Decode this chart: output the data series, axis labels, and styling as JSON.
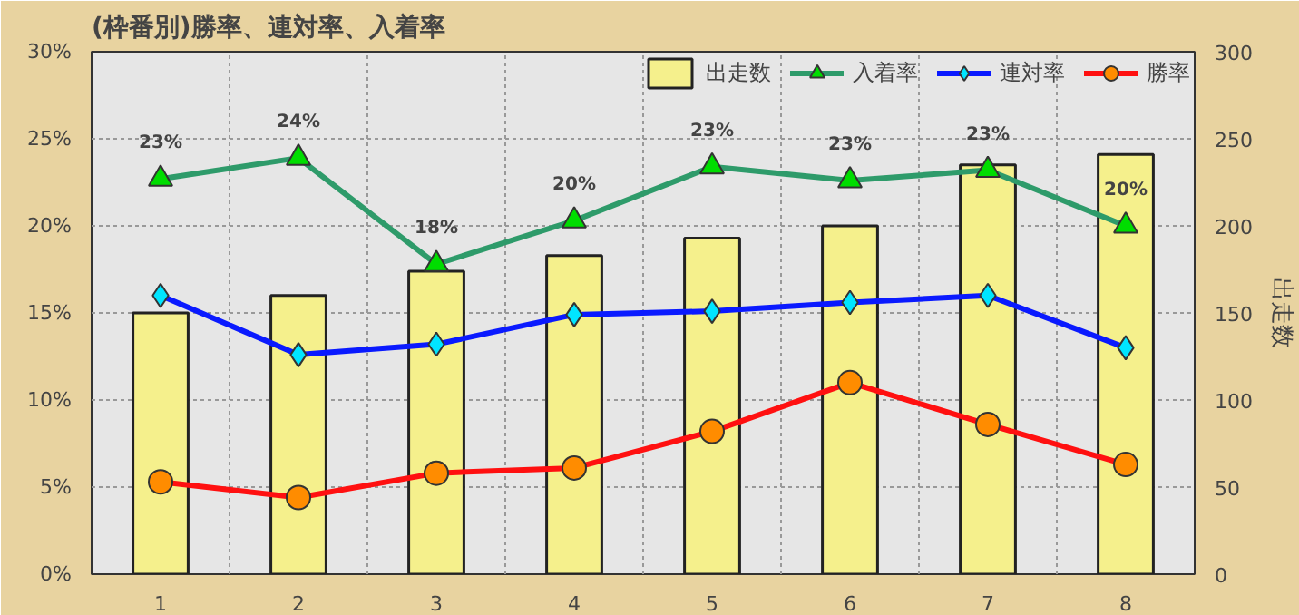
{
  "chart_data": {
    "type": "bar",
    "title": "(枠番別)勝率、連対率、入着率",
    "categories": [
      "1",
      "2",
      "3",
      "4",
      "5",
      "6",
      "7",
      "8"
    ],
    "series": [
      {
        "name": "出走数",
        "axis": "y2",
        "color": "#f5f08c",
        "values": [
          150,
          160,
          174,
          183,
          193,
          200,
          235,
          241
        ]
      },
      {
        "name": "入着率",
        "type": "line",
        "marker": "triangle",
        "color": "#2e9b6a",
        "values": [
          22.7,
          23.9,
          17.8,
          20.3,
          23.4,
          22.6,
          23.2,
          20.0
        ],
        "value_labels": [
          "23%",
          "24%",
          "18%",
          "20%",
          "23%",
          "23%",
          "23%",
          "20%"
        ]
      },
      {
        "name": "連対率",
        "type": "line",
        "marker": "diamond",
        "color": "#0a1aff",
        "values": [
          16.0,
          12.6,
          13.2,
          14.9,
          15.1,
          15.6,
          16.0,
          13.0
        ]
      },
      {
        "name": "勝率",
        "type": "line",
        "marker": "circle",
        "color": "#ff1010",
        "values": [
          5.3,
          4.4,
          5.8,
          6.1,
          8.2,
          11.0,
          8.6,
          6.3
        ]
      }
    ],
    "ylim": [
      0,
      30
    ],
    "yticks": [
      {
        "value": 0,
        "label": "0%"
      },
      {
        "value": 5,
        "label": "5%"
      },
      {
        "value": 10,
        "label": "10%"
      },
      {
        "value": 15,
        "label": "15%"
      },
      {
        "value": 20,
        "label": "20%"
      },
      {
        "value": 25,
        "label": "25%"
      },
      {
        "value": 30,
        "label": "30%"
      }
    ],
    "y2lim": [
      0,
      300
    ],
    "y2ticks": [
      0,
      50,
      100,
      150,
      200,
      250,
      300
    ],
    "y2label": "出走数",
    "grid": true,
    "legend": "top right"
  }
}
